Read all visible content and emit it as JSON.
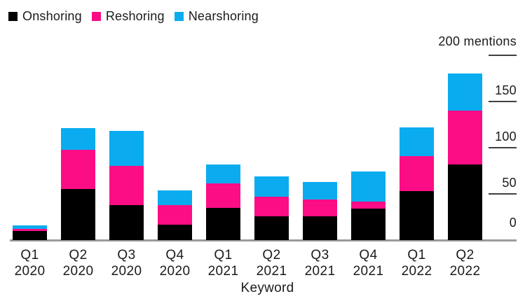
{
  "legend": {
    "items": [
      {
        "label": "Onshoring",
        "color": "#000000"
      },
      {
        "label": "Reshoring",
        "color": "#fc0d86"
      },
      {
        "label": "Nearshoring",
        "color": "#0aacef"
      }
    ]
  },
  "chart_data": {
    "type": "bar",
    "stacked": true,
    "unit": "mentions",
    "categories": [
      {
        "quarter": "Q1",
        "year": "2020"
      },
      {
        "quarter": "Q2",
        "year": "2020"
      },
      {
        "quarter": "Q3",
        "year": "2020"
      },
      {
        "quarter": "Q4",
        "year": "2020"
      },
      {
        "quarter": "Q1",
        "year": "2021"
      },
      {
        "quarter": "Q2",
        "year": "2021"
      },
      {
        "quarter": "Q3",
        "year": "2021"
      },
      {
        "quarter": "Q4",
        "year": "2021"
      },
      {
        "quarter": "Q1",
        "year": "2022"
      },
      {
        "quarter": "Q2",
        "year": "2022"
      }
    ],
    "series": [
      {
        "name": "Onshoring",
        "color": "#000000",
        "values": [
          10,
          55,
          38,
          17,
          35,
          26,
          26,
          34,
          53,
          82
        ]
      },
      {
        "name": "Reshoring",
        "color": "#fc0d86",
        "values": [
          2,
          43,
          42,
          21,
          26,
          21,
          18,
          8,
          38,
          58
        ]
      },
      {
        "name": "Nearshoring",
        "color": "#0aacef",
        "values": [
          4,
          23,
          38,
          16,
          21,
          22,
          19,
          32,
          31,
          40
        ]
      }
    ],
    "ylim": [
      0,
      200
    ],
    "yticks": [
      {
        "value": 0,
        "label": "0"
      },
      {
        "value": 50,
        "label": "50"
      },
      {
        "value": 100,
        "label": "100"
      },
      {
        "value": 150,
        "label": "150"
      },
      {
        "value": 200,
        "label": "200 mentions"
      }
    ],
    "xlabel": "Keyword",
    "legend_position": "top-left",
    "grid": false
  },
  "colors": {
    "background": "#ffffff",
    "text": "#1b1b1b",
    "axis_line": "#9b9b9b",
    "tick_line": "#404040"
  }
}
